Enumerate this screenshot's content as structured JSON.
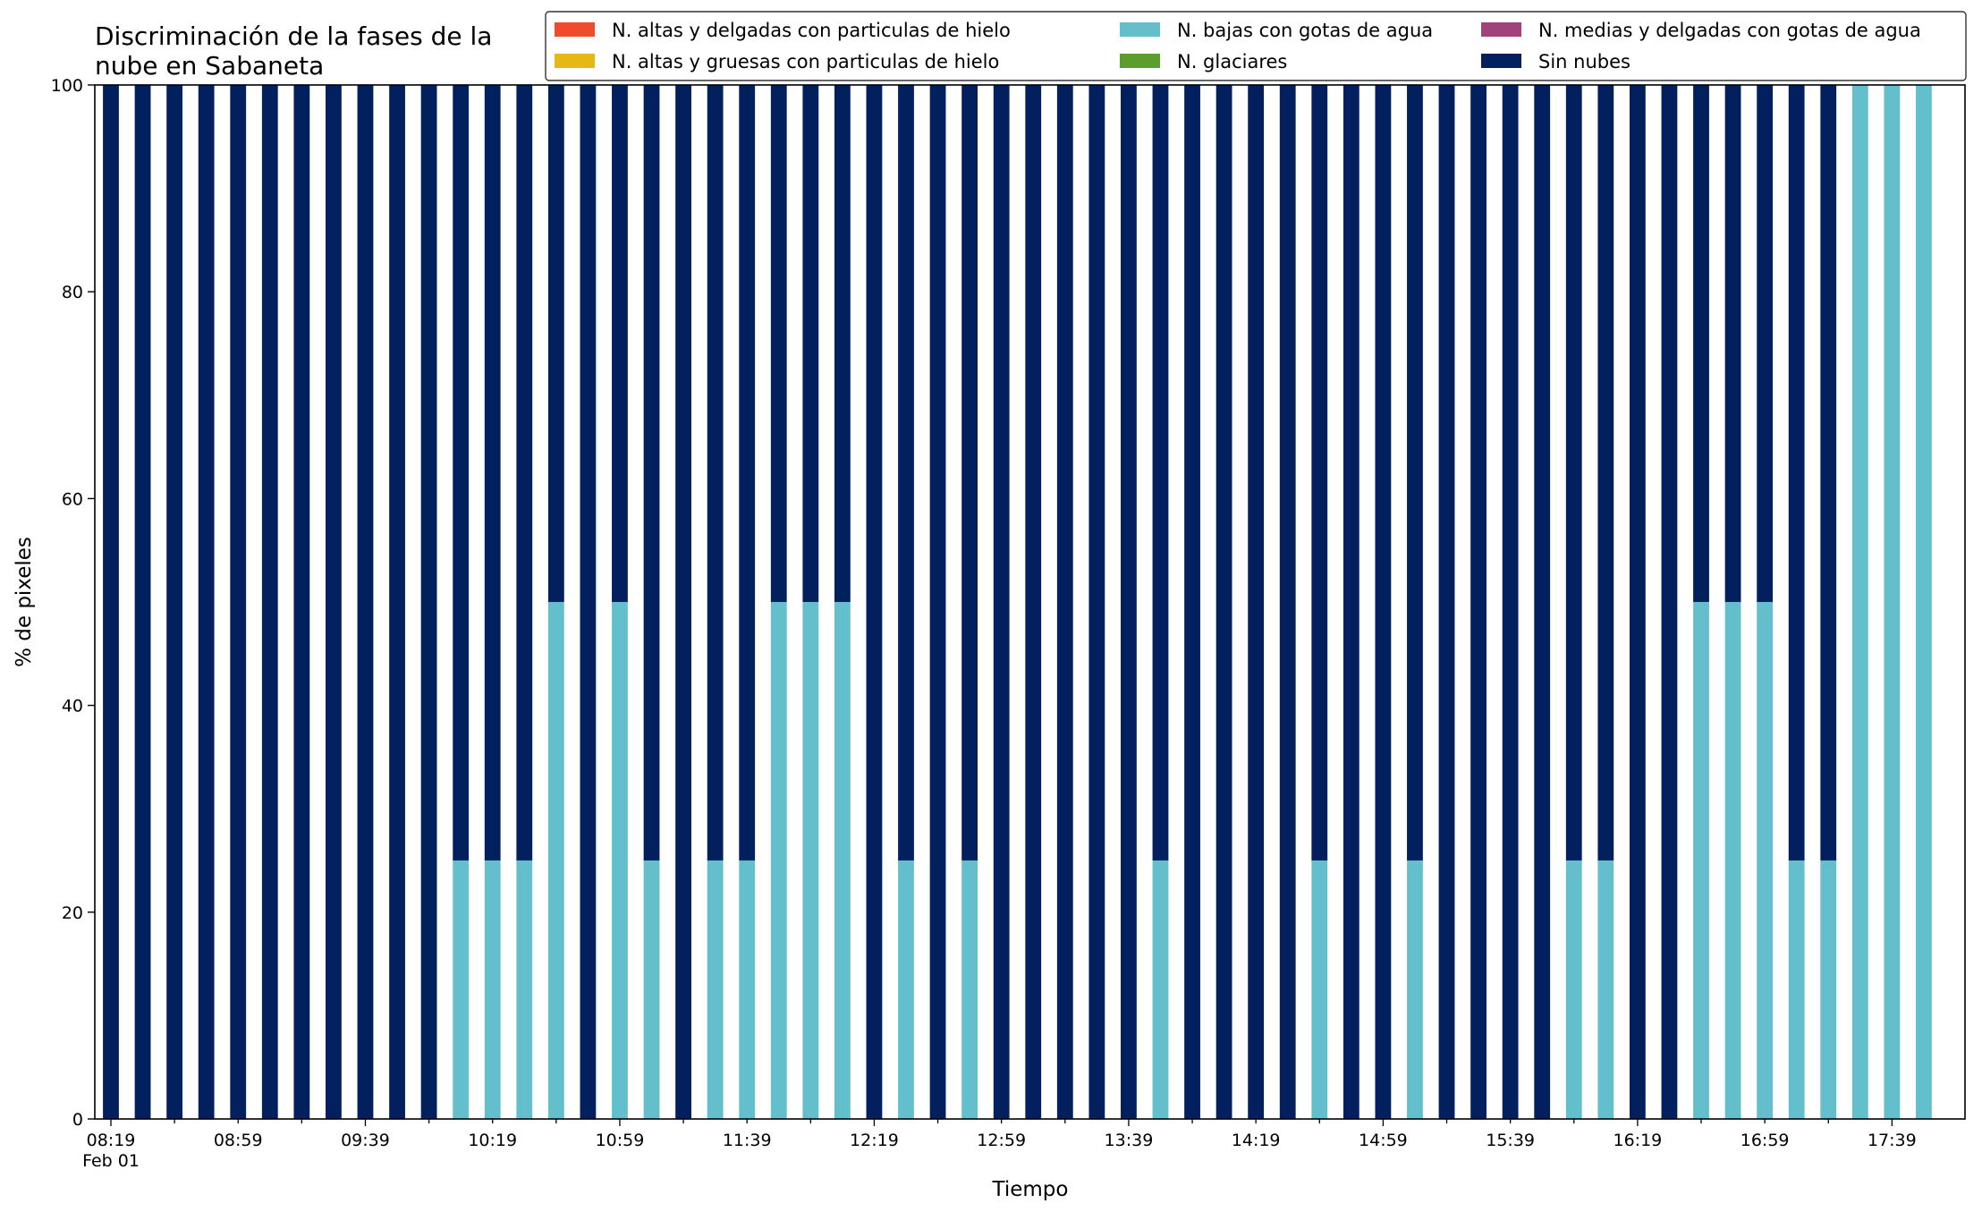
{
  "chart_data": {
    "type": "bar",
    "stacked": true,
    "title_lines": [
      "Discriminación de la fases de la",
      "nube en Sabaneta"
    ],
    "xlabel": "Tiempo",
    "ylabel": "% de pixeles",
    "ylim": [
      0,
      100
    ],
    "yticks": [
      "0",
      "20",
      "40",
      "60",
      "80",
      "100"
    ],
    "xtick_labels": [
      "08:19",
      "08:59",
      "09:39",
      "10:19",
      "10:59",
      "11:39",
      "12:19",
      "12:59",
      "13:39",
      "14:19",
      "14:59",
      "15:39",
      "16:19",
      "16:59",
      "17:39"
    ],
    "xtick_sublabel": "Feb 01",
    "grid": false,
    "legend_position": "top-right",
    "legend_columns": 3,
    "legend": [
      {
        "name": "N. altas y delgadas con particulas de hielo",
        "color": "#ee4c2c"
      },
      {
        "name": "N. altas y gruesas con particulas de hielo",
        "color": "#e6b816"
      },
      {
        "name": "N. bajas con gotas de agua",
        "color": "#63bfcc"
      },
      {
        "name": "N. glaciares",
        "color": "#5c9e2e"
      },
      {
        "name": "N. medias y delgadas con gotas de agua",
        "color": "#a3427a"
      },
      {
        "name": "Sin nubes",
        "color": "#021f5e"
      }
    ],
    "num_bars": 58,
    "series": [
      {
        "name": "N. bajas con gotas de agua",
        "color": "#63bfcc",
        "values": [
          0,
          0,
          0,
          0,
          0,
          0,
          0,
          0,
          0,
          0,
          0,
          25,
          25,
          25,
          50,
          0,
          50,
          25,
          0,
          25,
          25,
          50,
          50,
          50,
          0,
          25,
          0,
          25,
          0,
          0,
          0,
          0,
          0,
          25,
          0,
          0,
          0,
          0,
          25,
          0,
          0,
          25,
          0,
          0,
          0,
          0,
          25,
          25,
          0,
          0,
          50,
          50,
          50,
          25,
          25,
          100,
          100,
          100
        ]
      },
      {
        "name": "Sin nubes",
        "color": "#021f5e",
        "values": [
          100,
          100,
          100,
          100,
          100,
          100,
          100,
          100,
          100,
          100,
          100,
          75,
          75,
          75,
          50,
          100,
          50,
          75,
          100,
          75,
          75,
          50,
          50,
          50,
          100,
          75,
          100,
          75,
          100,
          100,
          100,
          100,
          100,
          75,
          100,
          100,
          100,
          100,
          75,
          100,
          100,
          75,
          100,
          100,
          100,
          100,
          75,
          75,
          100,
          100,
          50,
          50,
          50,
          75,
          75,
          0,
          0,
          0
        ]
      }
    ]
  }
}
